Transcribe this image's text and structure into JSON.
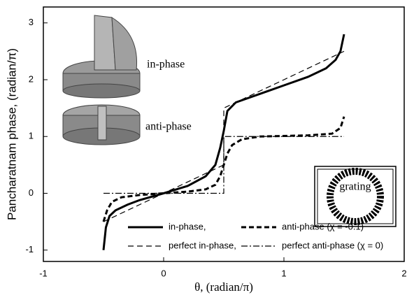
{
  "chart_data": {
    "type": "line",
    "xlabel": "θ, (radian/π)",
    "ylabel": "Pancharatnam phase, (radian/π)",
    "xlim": [
      -1,
      2
    ],
    "ylim": [
      -1.2,
      3.28
    ],
    "xticks": [
      -1,
      0,
      1,
      2
    ],
    "yticks": [
      -1,
      0,
      1,
      2,
      3
    ],
    "annotations": [
      "in-phase",
      "anti-phase",
      "grating"
    ],
    "series": [
      {
        "name": "in-phase,",
        "color": "#000",
        "dash": "solid",
        "width": 3,
        "x": [
          -0.5,
          -0.48,
          -0.45,
          -0.4,
          -0.3,
          -0.2,
          0,
          0.2,
          0.35,
          0.43,
          0.47,
          0.5,
          0.53,
          0.6,
          0.8,
          1.0,
          1.2,
          1.35,
          1.43,
          1.47,
          1.5
        ],
        "values": [
          -1,
          -0.6,
          -0.4,
          -0.3,
          -0.2,
          -0.12,
          0,
          0.13,
          0.3,
          0.5,
          0.8,
          1.1,
          1.45,
          1.6,
          1.75,
          1.9,
          2.05,
          2.2,
          2.35,
          2.5,
          2.8
        ]
      },
      {
        "name": "anti-phase (χ = -0.1)",
        "color": "#000",
        "dash": "dashed-heavy",
        "width": 3,
        "x": [
          -0.5,
          -0.47,
          -0.43,
          -0.35,
          -0.2,
          0,
          0.2,
          0.35,
          0.43,
          0.47,
          0.5,
          0.53,
          0.57,
          0.65,
          0.8,
          1.2,
          1.4,
          1.47,
          1.5
        ],
        "values": [
          -0.5,
          -0.3,
          -0.15,
          -0.07,
          -0.03,
          0,
          0.03,
          0.07,
          0.15,
          0.3,
          0.5,
          0.7,
          0.85,
          0.95,
          1.0,
          1.02,
          1.05,
          1.15,
          1.35
        ]
      },
      {
        "name": "perfect in-phase,",
        "color": "#000",
        "dash": "dashed",
        "width": 1.2,
        "x": [
          -0.5,
          0.5,
          0.5,
          1.5
        ],
        "values": [
          -0.5,
          0.5,
          1.5,
          2.5
        ]
      },
      {
        "name": "perfect anti-phase (χ = 0)",
        "color": "#000",
        "dash": "dashdot",
        "width": 1.2,
        "x": [
          -0.5,
          0.5,
          0.5,
          1.5
        ],
        "values": [
          0,
          0,
          1,
          1
        ]
      }
    ]
  }
}
